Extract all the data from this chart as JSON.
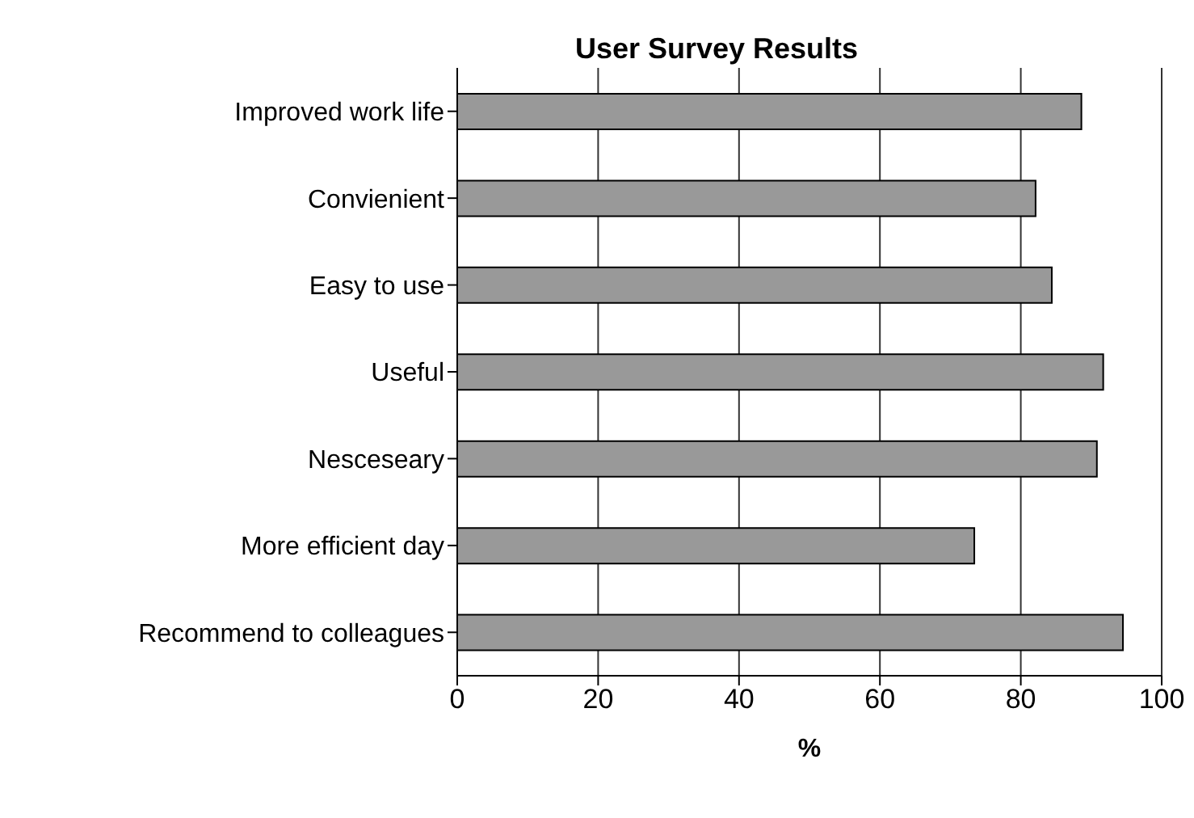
{
  "chart_data": {
    "type": "bar",
    "title": "User Survey Results",
    "xlabel": "%",
    "orientation": "horizontal",
    "categories": [
      "Improved work life",
      "Convienient",
      "Easy to use",
      "Useful",
      "Nesceseary",
      "More efficient day",
      "Recommend to colleagues"
    ],
    "values": [
      88.6,
      82.1,
      84.4,
      91.7,
      90.8,
      73.4,
      94.5
    ],
    "color": "#999999",
    "xlim": [
      0,
      100
    ],
    "xticks": [
      0,
      20,
      40,
      60,
      80,
      100
    ],
    "grid": "x"
  }
}
